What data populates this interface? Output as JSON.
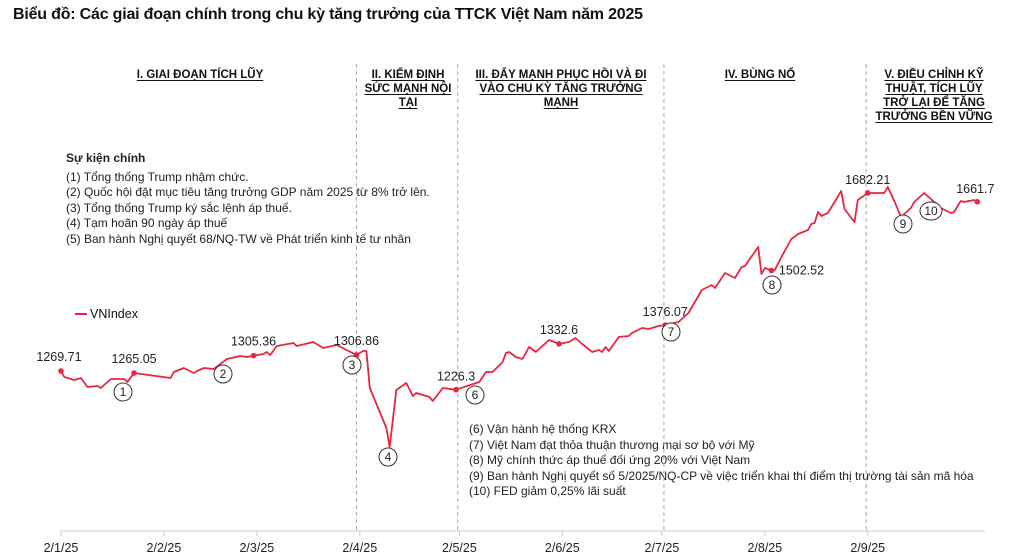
{
  "title": "Biểu đồ: Các giai đoạn chính trong chu kỳ tăng trưởng của TTCK Việt Nam năm 2025",
  "phases": [
    {
      "label": "I. GIAI ĐOẠN TÍCH LŨY"
    },
    {
      "label": "II. KIỂM ĐỊNH SỨC MẠNH NỘI TẠI"
    },
    {
      "label": "III. ĐẨY MẠNH PHỤC HỒI VÀ ĐI VÀO CHU KỲ TĂNG TRƯỞNG MẠNH"
    },
    {
      "label": "IV. BÙNG NỔ"
    },
    {
      "label": "V. ĐIỀU CHỈNH KỸ THUẬT, TÍCH LŨY TRỞ LẠI ĐỂ TĂNG TRƯỞNG BỀN VỮNG"
    }
  ],
  "events_heading": "Sự kiện chính",
  "events": [
    "(1) Tổng thống Trump nhậm chức.",
    "(2) Quốc hội đặt mục tiêu tăng trưởng GDP năm 2025 từ 8% trở lên.",
    "(3) Tổng thống Trump ký sắc lệnh áp thuế.",
    "(4) Tạm hoãn 90 ngày áp thuế",
    "(5) Ban hành Nghị quyết 68/NQ-TW về Phát triển kinh tế tư nhân",
    "(6) Vận hành hệ thống KRX",
    "(7) Việt Nam đạt thỏa thuận thương mại sơ bộ với Mỹ",
    "(8) Mỹ chính thức áp thuế đối ứng 20% với Việt Nam",
    "(9) Ban hành Nghị quyết số 5/2025/NQ-CP về việc triển khai thí điểm thị trường tài sản mã hóa",
    "(10) FED giảm 0,25% lãi suất"
  ],
  "colors": {
    "line": "#e8263f",
    "axis": "#cccccc",
    "separator": "#aaaaaa"
  },
  "chart_data": {
    "type": "line",
    "title": "Biểu đồ: Các giai đoạn chính trong chu kỳ tăng trưởng của TTCK Việt Nam năm 2025",
    "xlabel": "",
    "ylabel": "",
    "x_unit": "days since 2/1/25",
    "legend": {
      "entries": [
        "VNIndex"
      ],
      "placement": "middle-left"
    },
    "grid": false,
    "ylim": [
      1080,
      1720
    ],
    "x_ticks": [
      {
        "day": 0,
        "label": "2/1/25"
      },
      {
        "day": 31,
        "label": "2/2/25"
      },
      {
        "day": 59,
        "label": "2/3/25"
      },
      {
        "day": 90,
        "label": "2/4/25"
      },
      {
        "day": 120,
        "label": "2/5/25"
      },
      {
        "day": 151,
        "label": "2/6/25"
      },
      {
        "day": 181,
        "label": "2/7/25"
      },
      {
        "day": 212,
        "label": "2/8/25"
      },
      {
        "day": 243,
        "label": "2/9/25"
      }
    ],
    "phase_boundaries_day": [
      89,
      119.5,
      181.6,
      242.5
    ],
    "series": [
      {
        "name": "VNIndex",
        "points": [
          [
            0,
            1269.71
          ],
          [
            1,
            1255.8
          ],
          [
            4,
            1248.9
          ],
          [
            6,
            1253.5
          ],
          [
            8,
            1232.6
          ],
          [
            11,
            1235.0
          ],
          [
            12,
            1230.3
          ],
          [
            15,
            1251.2
          ],
          [
            19,
            1251.2
          ],
          [
            20,
            1244.2
          ],
          [
            22,
            1265.05
          ],
          [
            33,
            1253.5
          ],
          [
            34,
            1267.4
          ],
          [
            37,
            1276.7
          ],
          [
            40,
            1265.1
          ],
          [
            41,
            1269.7
          ],
          [
            43,
            1276.7
          ],
          [
            46,
            1274.3
          ],
          [
            50,
            1297.5
          ],
          [
            54,
            1304.5
          ],
          [
            56,
            1302.1
          ],
          [
            58,
            1305.36
          ],
          [
            61,
            1309.1
          ],
          [
            62,
            1313.7
          ],
          [
            63,
            1306.8
          ],
          [
            65,
            1327.6
          ],
          [
            70,
            1334.6
          ],
          [
            71,
            1327.6
          ],
          [
            76,
            1336.9
          ],
          [
            79,
            1323.0
          ],
          [
            83,
            1329.9
          ],
          [
            89,
            1306.86
          ],
          [
            91,
            1316.0
          ],
          [
            92,
            1316.0
          ],
          [
            93,
            1230.3
          ],
          [
            98,
            1137.6
          ],
          [
            99,
            1093.6
          ],
          [
            101,
            1225.7
          ],
          [
            104,
            1241.9
          ],
          [
            106,
            1211.8
          ],
          [
            107,
            1218.7
          ],
          [
            111,
            1209.5
          ],
          [
            112,
            1200.2
          ],
          [
            115,
            1230.3
          ],
          [
            119,
            1226.3
          ],
          [
            126,
            1244.2
          ],
          [
            128,
            1267.4
          ],
          [
            130,
            1267.4
          ],
          [
            133,
            1290.6
          ],
          [
            134,
            1311.4
          ],
          [
            135,
            1313.7
          ],
          [
            137,
            1302.1
          ],
          [
            139,
            1297.5
          ],
          [
            141,
            1325.3
          ],
          [
            143,
            1313.7
          ],
          [
            147,
            1341.5
          ],
          [
            150,
            1332.6
          ],
          [
            153,
            1336.9
          ],
          [
            155,
            1346.2
          ],
          [
            157,
            1332.3
          ],
          [
            160,
            1313.7
          ],
          [
            162,
            1318.4
          ],
          [
            163,
            1313.7
          ],
          [
            164,
            1325.3
          ],
          [
            165,
            1316.0
          ],
          [
            168,
            1348.5
          ],
          [
            171,
            1350.8
          ],
          [
            172,
            1357.7
          ],
          [
            175,
            1369.3
          ],
          [
            177,
            1367.0
          ],
          [
            180,
            1374.0
          ],
          [
            182,
            1376.07
          ],
          [
            186,
            1383.2
          ],
          [
            189,
            1404.1
          ],
          [
            193,
            1457.4
          ],
          [
            196,
            1469.0
          ],
          [
            197,
            1462.0
          ],
          [
            200,
            1496.8
          ],
          [
            203,
            1485.2
          ],
          [
            205,
            1510.7
          ],
          [
            206,
            1513.0
          ],
          [
            210,
            1557.0
          ],
          [
            211,
            1494.5
          ],
          [
            212,
            1508.4
          ],
          [
            214,
            1502.52
          ],
          [
            215,
            1503.7
          ],
          [
            217,
            1533.8
          ],
          [
            220,
            1575.6
          ],
          [
            222,
            1587.1
          ],
          [
            225,
            1596.4
          ],
          [
            226,
            1610.3
          ],
          [
            227,
            1612.6
          ],
          [
            228,
            1638.1
          ],
          [
            229,
            1628.8
          ],
          [
            231,
            1636.1
          ],
          [
            235,
            1686.8
          ],
          [
            236,
            1645.1
          ],
          [
            239,
            1615.0
          ],
          [
            240,
            1665.9
          ],
          [
            243,
            1682.21
          ],
          [
            248,
            1682.2
          ],
          [
            249,
            1696.0
          ],
          [
            251,
            1663.6
          ],
          [
            253,
            1626.5
          ],
          [
            256,
            1647.4
          ],
          [
            257,
            1661.3
          ],
          [
            260,
            1682.1
          ],
          [
            265,
            1647.4
          ],
          [
            268,
            1635.8
          ],
          [
            269,
            1638.1
          ],
          [
            271,
            1663.6
          ],
          [
            272,
            1661.3
          ],
          [
            275,
            1665.9
          ],
          [
            276,
            1661.7
          ]
        ]
      }
    ],
    "value_labels": [
      {
        "day": 0,
        "value": 1269.71,
        "text": "1269.71"
      },
      {
        "day": 22,
        "value": 1265.05,
        "text": "1265.05"
      },
      {
        "day": 58,
        "value": 1305.36,
        "text": "1305.36"
      },
      {
        "day": 89,
        "value": 1306.86,
        "text": "1306.86"
      },
      {
        "day": 119,
        "value": 1226.3,
        "text": "1226.3"
      },
      {
        "day": 150,
        "value": 1332.6,
        "text": "1332.6"
      },
      {
        "day": 182,
        "value": 1376.07,
        "text": "1376.07"
      },
      {
        "day": 214,
        "value": 1502.52,
        "text": "1502.52"
      },
      {
        "day": 243,
        "value": 1682.21,
        "text": "1682.21"
      },
      {
        "day": 276,
        "value": 1661.7,
        "text": "1661.7"
      }
    ],
    "event_markers": [
      {
        "id": "1",
        "day": 19
      },
      {
        "id": "2",
        "day": 49
      },
      {
        "id": "3",
        "day": 88
      },
      {
        "id": "4",
        "day": 99
      },
      {
        "id": "6",
        "day": 125
      },
      {
        "id": "7",
        "day": 184
      },
      {
        "id": "8",
        "day": 214
      },
      {
        "id": "9",
        "day": 253
      },
      {
        "id": "10",
        "day": 261
      }
    ]
  }
}
